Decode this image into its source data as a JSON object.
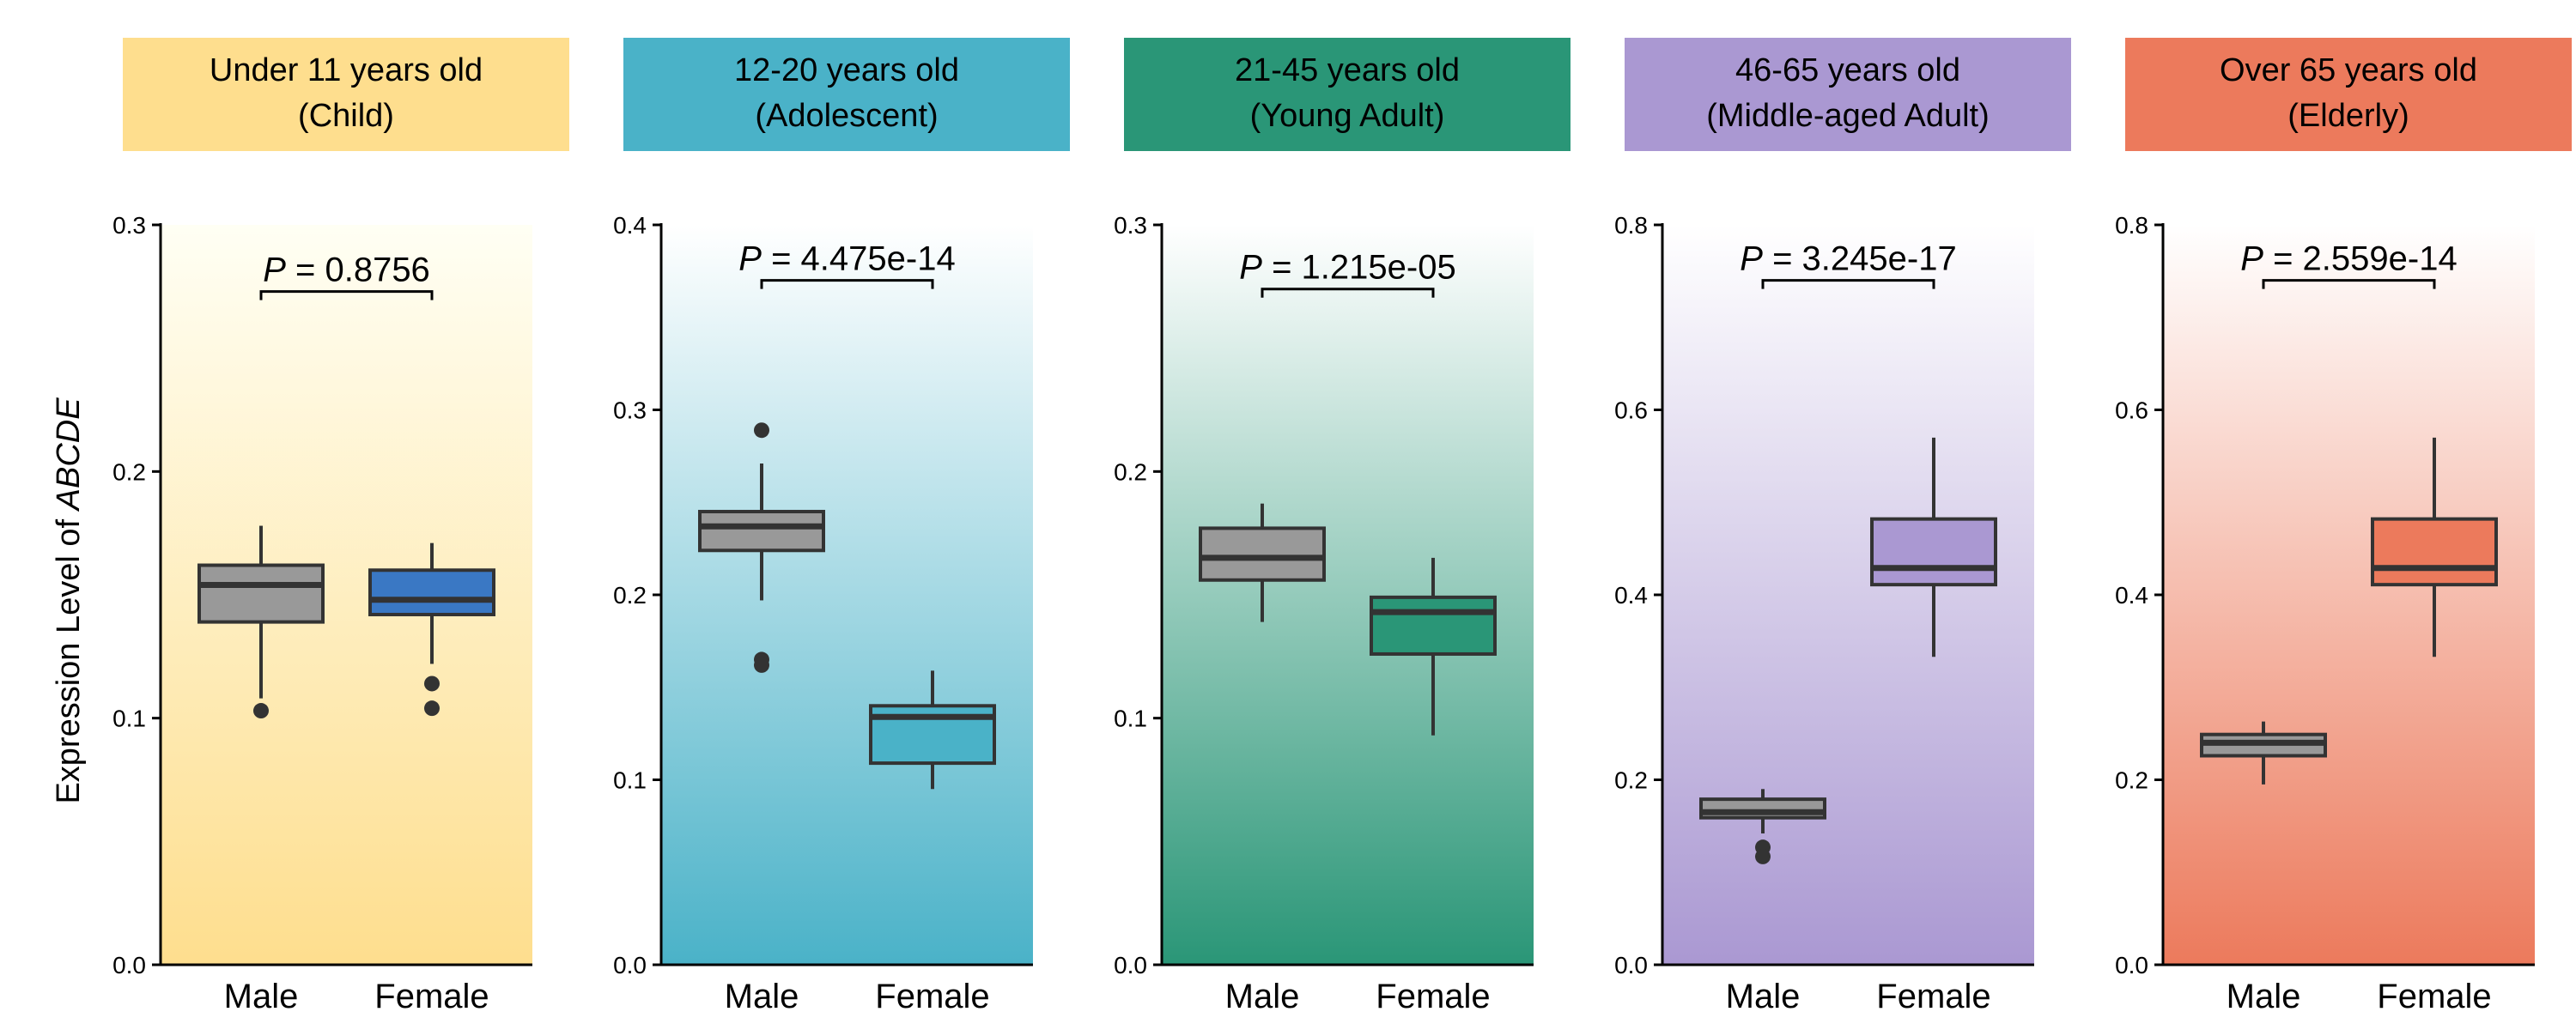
{
  "y_axis_label": {
    "prefix": "Expression Level of ",
    "gene": "ABCDE"
  },
  "chart_data": [
    {
      "type": "box",
      "header": [
        "Under 11 years old",
        "(Child)"
      ],
      "header_color": "#FEDE8E",
      "gradient": [
        "#FFFFF4",
        "#FEDE8E"
      ],
      "categories": [
        "Male",
        "Female"
      ],
      "box_colors": [
        "#999999",
        "#3A78C4"
      ],
      "ylim": [
        0,
        0.3
      ],
      "yticks": [
        "0.0",
        "0.1",
        "0.2",
        "0.3"
      ],
      "ytick_values": [
        0,
        0.1,
        0.2,
        0.3
      ],
      "p_label": "P",
      "p_value": " = 0.8756",
      "p_bracket_y": 0.273,
      "boxes": [
        {
          "q1": 0.139,
          "median": 0.154,
          "q3": 0.162,
          "whisker_low": 0.108,
          "whisker_high": 0.178,
          "outliers": [
            0.103
          ]
        },
        {
          "q1": 0.142,
          "median": 0.148,
          "q3": 0.16,
          "whisker_low": 0.122,
          "whisker_high": 0.171,
          "outliers": [
            0.114,
            0.104
          ]
        }
      ]
    },
    {
      "type": "box",
      "header": [
        "12-20 years old",
        "(Adolescent)"
      ],
      "header_color": "#4AB2C8",
      "gradient": [
        "#FFFFFF",
        "#4AB2C8"
      ],
      "categories": [
        "Male",
        "Female"
      ],
      "box_colors": [
        "#999999",
        "#4AB2C8"
      ],
      "ylim": [
        0,
        0.4
      ],
      "yticks": [
        "0.0",
        "0.1",
        "0.2",
        "0.3",
        "0.4"
      ],
      "ytick_values": [
        0,
        0.1,
        0.2,
        0.3,
        0.4
      ],
      "p_label": "P",
      "p_value": " = 4.475e-14",
      "p_bracket_y": 0.37,
      "boxes": [
        {
          "q1": 0.224,
          "median": 0.237,
          "q3": 0.245,
          "whisker_low": 0.197,
          "whisker_high": 0.271,
          "outliers": [
            0.289,
            0.165,
            0.162
          ]
        },
        {
          "q1": 0.109,
          "median": 0.134,
          "q3": 0.14,
          "whisker_low": 0.095,
          "whisker_high": 0.159,
          "outliers": []
        }
      ]
    },
    {
      "type": "box",
      "header": [
        "21-45 years old",
        "(Young Adult)"
      ],
      "header_color": "#2A9677",
      "gradient": [
        "#FFFFFF",
        "#2A9677"
      ],
      "categories": [
        "Male",
        "Female"
      ],
      "box_colors": [
        "#999999",
        "#2A9677"
      ],
      "ylim": [
        0,
        0.3
      ],
      "yticks": [
        "0.0",
        "0.1",
        "0.2",
        "0.3"
      ],
      "ytick_values": [
        0,
        0.1,
        0.2,
        0.3
      ],
      "p_label": "P",
      "p_value": " = 1.215e-05",
      "p_bracket_y": 0.274,
      "boxes": [
        {
          "q1": 0.156,
          "median": 0.165,
          "q3": 0.177,
          "whisker_low": 0.139,
          "whisker_high": 0.187,
          "outliers": []
        },
        {
          "q1": 0.126,
          "median": 0.143,
          "q3": 0.149,
          "whisker_low": 0.093,
          "whisker_high": 0.165,
          "outliers": []
        }
      ]
    },
    {
      "type": "box",
      "header": [
        "46-65 years old",
        "(Middle-aged Adult)"
      ],
      "header_color": "#AA98D2",
      "gradient": [
        "#FFFFFF",
        "#AA98D2"
      ],
      "categories": [
        "Male",
        "Female"
      ],
      "box_colors": [
        "#999999",
        "#AA98D2"
      ],
      "ylim": [
        0,
        0.8
      ],
      "yticks": [
        "0.0",
        "0.2",
        "0.4",
        "0.6",
        "0.8"
      ],
      "ytick_values": [
        0,
        0.2,
        0.4,
        0.6,
        0.8
      ],
      "p_label": "P",
      "p_value": " = 3.245e-17",
      "p_bracket_y": 0.74,
      "boxes": [
        {
          "q1": 0.159,
          "median": 0.165,
          "q3": 0.179,
          "whisker_low": 0.142,
          "whisker_high": 0.19,
          "outliers": [
            0.127,
            0.117
          ]
        },
        {
          "q1": 0.411,
          "median": 0.429,
          "q3": 0.482,
          "whisker_low": 0.333,
          "whisker_high": 0.57,
          "outliers": []
        }
      ]
    },
    {
      "type": "box",
      "header": [
        "Over 65 years old",
        "(Elderly)"
      ],
      "header_color": "#EC7A5C",
      "gradient": [
        "#FFFFFF",
        "#EC7A5C"
      ],
      "categories": [
        "Male",
        "Female"
      ],
      "box_colors": [
        "#999999",
        "#EC7A5C"
      ],
      "ylim": [
        0,
        0.8
      ],
      "yticks": [
        "0.0",
        "0.2",
        "0.4",
        "0.6",
        "0.8"
      ],
      "ytick_values": [
        0,
        0.2,
        0.4,
        0.6,
        0.8
      ],
      "p_label": "P",
      "p_value": " = 2.559e-14",
      "p_bracket_y": 0.74,
      "boxes": [
        {
          "q1": 0.226,
          "median": 0.24,
          "q3": 0.249,
          "whisker_low": 0.195,
          "whisker_high": 0.263,
          "outliers": []
        },
        {
          "q1": 0.411,
          "median": 0.429,
          "q3": 0.482,
          "whisker_low": 0.333,
          "whisker_high": 0.57,
          "outliers": []
        }
      ]
    }
  ]
}
